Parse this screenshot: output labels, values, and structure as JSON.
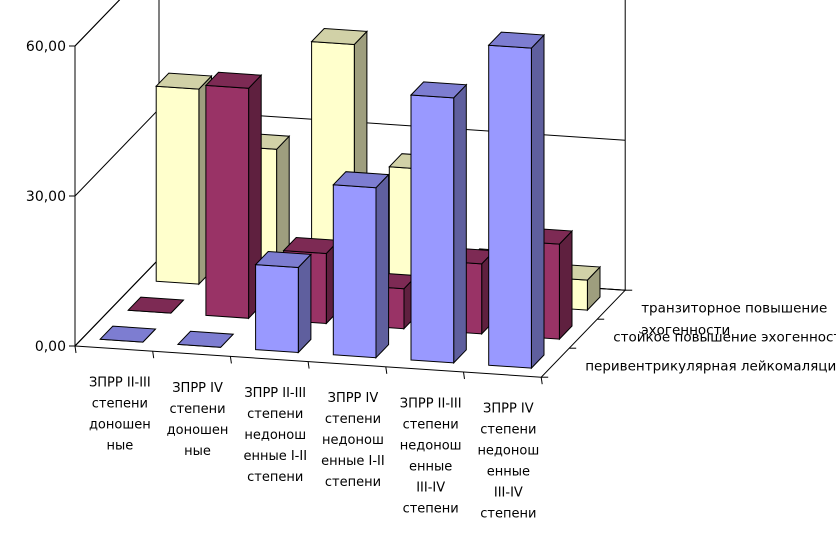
{
  "chart_data": {
    "type": "bar",
    "title": "",
    "xlabel": "",
    "ylabel": "",
    "ylim": [
      0,
      60
    ],
    "y_ticks": [
      "0,00",
      "30,00",
      "60,00"
    ],
    "grid": true,
    "categories": [
      [
        "ЗПРР II-III",
        "степени",
        "доношен",
        "ные"
      ],
      [
        "ЗПРР IV",
        "степени",
        "доношен",
        "ные"
      ],
      [
        "ЗПРР II-III",
        "степени",
        "недонош",
        "енные I-II",
        "степени"
      ],
      [
        "ЗПРР IV",
        "степени",
        "недонош",
        "енные I-II",
        "степени"
      ],
      [
        "ЗПРР II-III",
        "степени",
        "недонош",
        "енные",
        "III-IV",
        "степени"
      ],
      [
        "ЗПРР IV",
        "степени",
        "недонош",
        "енные",
        "III-IV",
        "степени"
      ]
    ],
    "series": [
      {
        "name": "перивентрикулярная лейкомаляция",
        "color": "#9999ff",
        "values": [
          0,
          0,
          17,
          34,
          53,
          64
        ]
      },
      {
        "name": "стойкое повышение эхогенности",
        "color": "#993366",
        "values": [
          0,
          46,
          14,
          8,
          14,
          19
        ]
      },
      {
        "name": "транзиторное повышение эхогенности",
        "color": "#ffffcc",
        "values": [
          39,
          28,
          50,
          26,
          8,
          6
        ]
      }
    ],
    "series_labels": {
      "front": [
        "перивентрикулярная лейкомаляция"
      ],
      "middle": [
        "стойкое повышение эхогенности"
      ],
      "back": [
        "транзиторное повышение",
        "эхогенности"
      ]
    }
  }
}
